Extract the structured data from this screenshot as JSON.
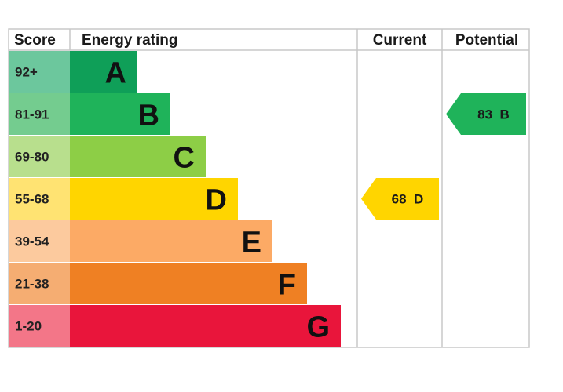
{
  "header": {
    "score": "Score",
    "energy_rating": "Energy rating",
    "current": "Current",
    "potential": "Potential"
  },
  "chart_data": {
    "type": "bar",
    "categories": [
      "92+",
      "81-91",
      "69-80",
      "55-68",
      "39-54",
      "21-38",
      "1-20"
    ],
    "bands": [
      {
        "letter": "A",
        "range": "92+",
        "color": "#0f9f58",
        "score_color": "#6cc79d"
      },
      {
        "letter": "B",
        "range": "81-91",
        "color": "#1fb35a",
        "score_color": "#74cc8f"
      },
      {
        "letter": "C",
        "range": "69-80",
        "color": "#8dce46",
        "score_color": "#b8df8d"
      },
      {
        "letter": "D",
        "range": "55-68",
        "color": "#ffd500",
        "score_color": "#ffe372"
      },
      {
        "letter": "E",
        "range": "39-54",
        "color": "#fcaa65",
        "score_color": "#fcca9e"
      },
      {
        "letter": "F",
        "range": "21-38",
        "color": "#ef8023",
        "score_color": "#f5ad72"
      },
      {
        "letter": "G",
        "range": "1-20",
        "color": "#e9153b",
        "score_color": "#f37688"
      }
    ],
    "current": {
      "value": 68,
      "band": "D",
      "label": "68  D",
      "color": "#ffd500"
    },
    "potential": {
      "value": 83,
      "band": "B",
      "label": "83  B",
      "color": "#1fb35a"
    }
  }
}
